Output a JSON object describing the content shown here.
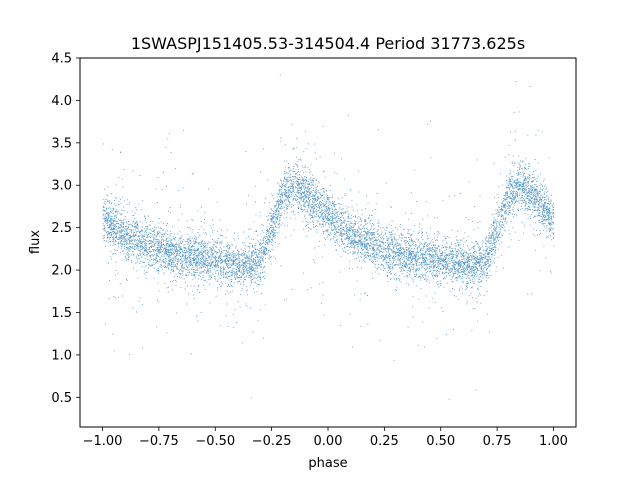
{
  "chart_data": {
    "type": "scatter",
    "title": "1SWASPJ151405.53-314504.4 Period 31773.625s",
    "xlabel": "phase",
    "ylabel": "flux",
    "xlim": [
      -1.1,
      1.1
    ],
    "ylim": [
      0.15,
      4.5
    ],
    "x_ticks": [
      "−1.00",
      "−0.75",
      "−0.50",
      "−0.25",
      "0.00",
      "0.25",
      "0.50",
      "0.75",
      "1.00"
    ],
    "y_ticks": [
      "0.5",
      "1.0",
      "1.5",
      "2.0",
      "2.5",
      "3.0",
      "3.5",
      "4.0",
      "4.5"
    ],
    "grid": false,
    "legend": "none",
    "marker_color": "#1f77b4",
    "phase_range": [
      -1.0,
      1.0
    ],
    "approx_n_points": 40000,
    "profile": {
      "x": [
        -1.0,
        -0.9,
        -0.8,
        -0.7,
        -0.6,
        -0.5,
        -0.4,
        -0.3,
        -0.25,
        -0.2,
        -0.15,
        -0.1,
        0.0,
        0.1,
        0.2,
        0.3,
        0.4,
        0.5,
        0.6,
        0.7,
        0.75,
        0.8,
        0.85,
        0.9,
        1.0
      ],
      "y": [
        2.6,
        2.4,
        2.3,
        2.2,
        2.15,
        2.1,
        2.05,
        2.1,
        2.5,
        2.9,
        3.0,
        2.9,
        2.65,
        2.4,
        2.3,
        2.2,
        2.15,
        2.1,
        2.05,
        2.1,
        2.5,
        2.9,
        3.0,
        2.9,
        2.6
      ]
    }
  }
}
